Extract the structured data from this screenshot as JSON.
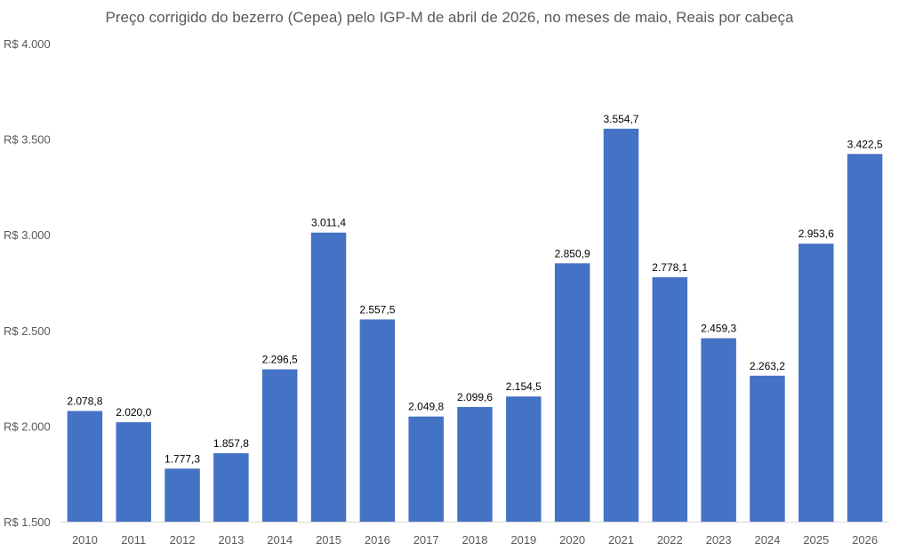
{
  "chart_data": {
    "type": "bar",
    "title": "Preço corrigido do bezerro (Cepea) pelo IGP-M de abril de 2026, no meses de maio, Reais por cabeça",
    "xlabel": "",
    "ylabel": "",
    "categories": [
      "2010",
      "2011",
      "2012",
      "2013",
      "2014",
      "2015",
      "2016",
      "2017",
      "2018",
      "2019",
      "2020",
      "2021",
      "2022",
      "2023",
      "2024",
      "2025",
      "2026"
    ],
    "values": [
      2078.8,
      2020.0,
      1777.3,
      1857.8,
      2296.5,
      3011.4,
      2557.5,
      2049.8,
      2099.6,
      2154.5,
      2850.9,
      3554.7,
      2778.1,
      2459.3,
      2263.2,
      2953.6,
      3422.5
    ],
    "data_labels": [
      "2.078,8",
      "2.020,0",
      "1.777,3",
      "1.857,8",
      "2.296,5",
      "3.011,4",
      "2.557,5",
      "2.049,8",
      "2.099,6",
      "2.154,5",
      "2.850,9",
      "3.554,7",
      "2.778,1",
      "2.459,3",
      "2.263,2",
      "2.953,6",
      "3.422,5"
    ],
    "ylim": [
      1500,
      4000
    ],
    "yticks": [
      1500,
      2000,
      2500,
      3000,
      3500,
      4000
    ],
    "ytick_labels": [
      "R$ 1.500",
      "R$ 2.000",
      "R$ 2.500",
      "R$ 3.000",
      "R$ 3.500",
      "R$ 4.000"
    ],
    "grid": false,
    "legend": "none",
    "bar_color": "#4472C4",
    "axis_color": "#D9D9D9"
  }
}
